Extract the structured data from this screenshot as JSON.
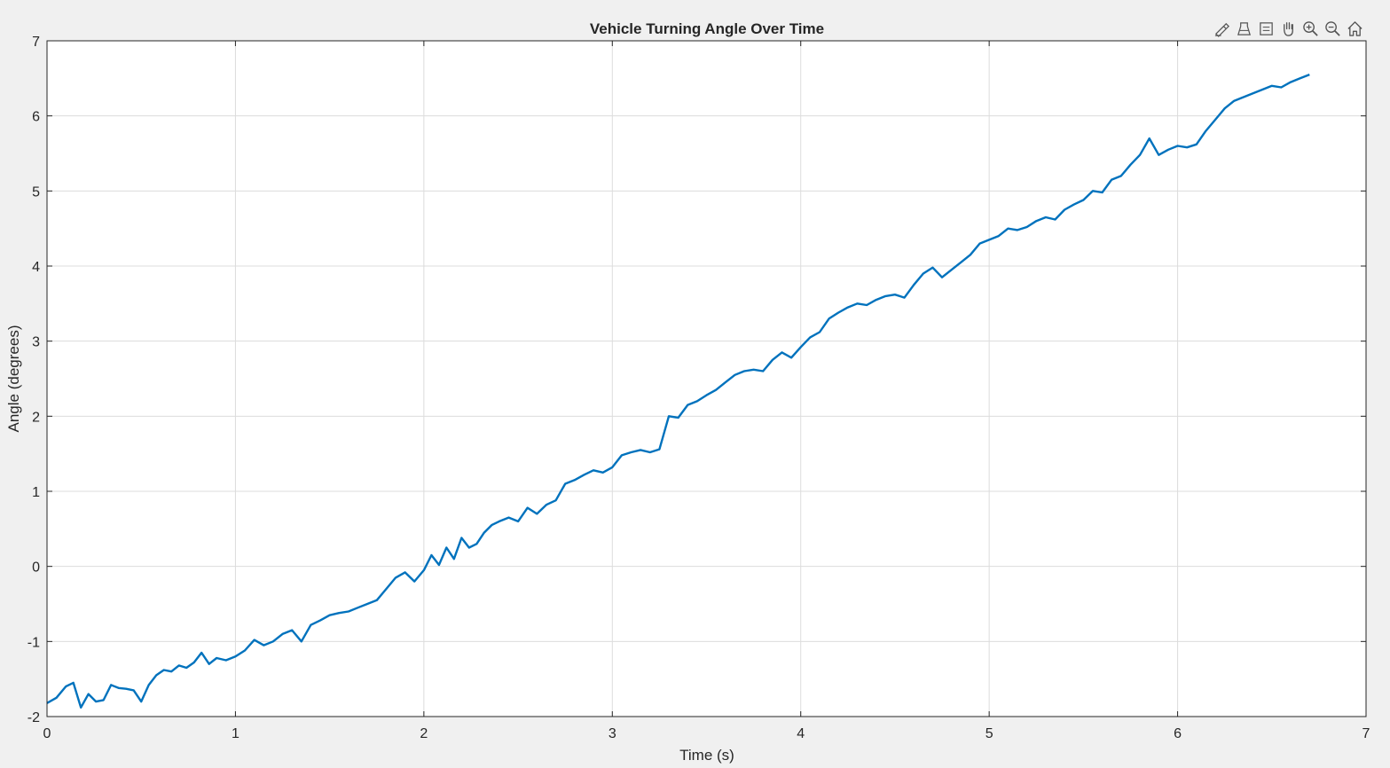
{
  "window": {
    "toolbar": [
      {
        "name": "brush-icon",
        "label": "Brush/Select Data"
      },
      {
        "name": "datatip-icon",
        "label": "Data Tips"
      },
      {
        "name": "export-icon",
        "label": "Export"
      },
      {
        "name": "pan-hand-icon",
        "label": "Pan"
      },
      {
        "name": "zoom-in-icon",
        "label": "Zoom In"
      },
      {
        "name": "zoom-out-icon",
        "label": "Zoom Out"
      },
      {
        "name": "home-icon",
        "label": "Restore View"
      }
    ]
  },
  "chart_data": {
    "type": "line",
    "title": "Vehicle Turning Angle Over Time",
    "xlabel": "Time (s)",
    "ylabel": "Angle (degrees)",
    "xlim": [
      0,
      7
    ],
    "ylim": [
      -2,
      7
    ],
    "xticks": [
      0,
      1,
      2,
      3,
      4,
      5,
      6,
      7
    ],
    "yticks": [
      -2,
      -1,
      0,
      1,
      2,
      3,
      4,
      5,
      6,
      7
    ],
    "grid": true,
    "colors": {
      "line": "#0072BD",
      "grid": "#dcdcdc",
      "axes": "#262626",
      "plot_bg": "#ffffff",
      "figure_bg": "#f0f0f0"
    },
    "series": [
      {
        "x": [
          0.0,
          0.05,
          0.1,
          0.14,
          0.18,
          0.22,
          0.26,
          0.3,
          0.34,
          0.38,
          0.42,
          0.46,
          0.5,
          0.54,
          0.58,
          0.62,
          0.66,
          0.7,
          0.74,
          0.78,
          0.82,
          0.86,
          0.9,
          0.95,
          1.0,
          1.05,
          1.1,
          1.15,
          1.2,
          1.25,
          1.3,
          1.35,
          1.4,
          1.45,
          1.5,
          1.55,
          1.6,
          1.65,
          1.7,
          1.75,
          1.8,
          1.85,
          1.9,
          1.95,
          2.0,
          2.04,
          2.08,
          2.12,
          2.16,
          2.2,
          2.24,
          2.28,
          2.32,
          2.36,
          2.4,
          2.45,
          2.5,
          2.55,
          2.6,
          2.65,
          2.7,
          2.75,
          2.8,
          2.85,
          2.9,
          2.95,
          3.0,
          3.05,
          3.1,
          3.15,
          3.2,
          3.25,
          3.3,
          3.35,
          3.4,
          3.45,
          3.5,
          3.55,
          3.6,
          3.65,
          3.7,
          3.75,
          3.8,
          3.85,
          3.9,
          3.95,
          4.0,
          4.05,
          4.1,
          4.15,
          4.2,
          4.25,
          4.3,
          4.35,
          4.4,
          4.45,
          4.5,
          4.55,
          4.6,
          4.65,
          4.7,
          4.75,
          4.8,
          4.85,
          4.9,
          4.95,
          5.0,
          5.05,
          5.1,
          5.15,
          5.2,
          5.25,
          5.3,
          5.35,
          5.4,
          5.45,
          5.5,
          5.55,
          5.6,
          5.65,
          5.7,
          5.75,
          5.8,
          5.85,
          5.9,
          5.95,
          6.0,
          6.05,
          6.1,
          6.15,
          6.2,
          6.25,
          6.3,
          6.35,
          6.4,
          6.45,
          6.5,
          6.55,
          6.6,
          6.65,
          6.7
        ],
        "y": [
          -1.82,
          -1.75,
          -1.6,
          -1.55,
          -1.88,
          -1.7,
          -1.8,
          -1.78,
          -1.58,
          -1.62,
          -1.63,
          -1.65,
          -1.8,
          -1.58,
          -1.45,
          -1.38,
          -1.4,
          -1.32,
          -1.35,
          -1.28,
          -1.15,
          -1.3,
          -1.22,
          -1.25,
          -1.2,
          -1.12,
          -0.98,
          -1.05,
          -1.0,
          -0.9,
          -0.85,
          -1.0,
          -0.78,
          -0.72,
          -0.65,
          -0.62,
          -0.6,
          -0.55,
          -0.5,
          -0.45,
          -0.3,
          -0.15,
          -0.08,
          -0.2,
          -0.05,
          0.15,
          0.02,
          0.25,
          0.1,
          0.38,
          0.25,
          0.3,
          0.45,
          0.55,
          0.6,
          0.65,
          0.6,
          0.78,
          0.7,
          0.82,
          0.88,
          1.1,
          1.15,
          1.22,
          1.28,
          1.25,
          1.32,
          1.48,
          1.52,
          1.55,
          1.52,
          1.56,
          2.0,
          1.98,
          2.15,
          2.2,
          2.28,
          2.35,
          2.45,
          2.55,
          2.6,
          2.62,
          2.6,
          2.75,
          2.85,
          2.78,
          2.92,
          3.05,
          3.12,
          3.3,
          3.38,
          3.45,
          3.5,
          3.48,
          3.55,
          3.6,
          3.62,
          3.58,
          3.75,
          3.9,
          3.98,
          3.85,
          3.95,
          4.05,
          4.15,
          4.3,
          4.35,
          4.4,
          4.5,
          4.48,
          4.52,
          4.6,
          4.65,
          4.62,
          4.75,
          4.82,
          4.88,
          5.0,
          4.98,
          5.15,
          5.2,
          5.35,
          5.48,
          5.7,
          5.48,
          5.55,
          5.6,
          5.58,
          5.62,
          5.8,
          5.95,
          6.1,
          6.2,
          6.25,
          6.3,
          6.35,
          6.4,
          6.38,
          6.45,
          6.5,
          6.55
        ]
      }
    ]
  }
}
